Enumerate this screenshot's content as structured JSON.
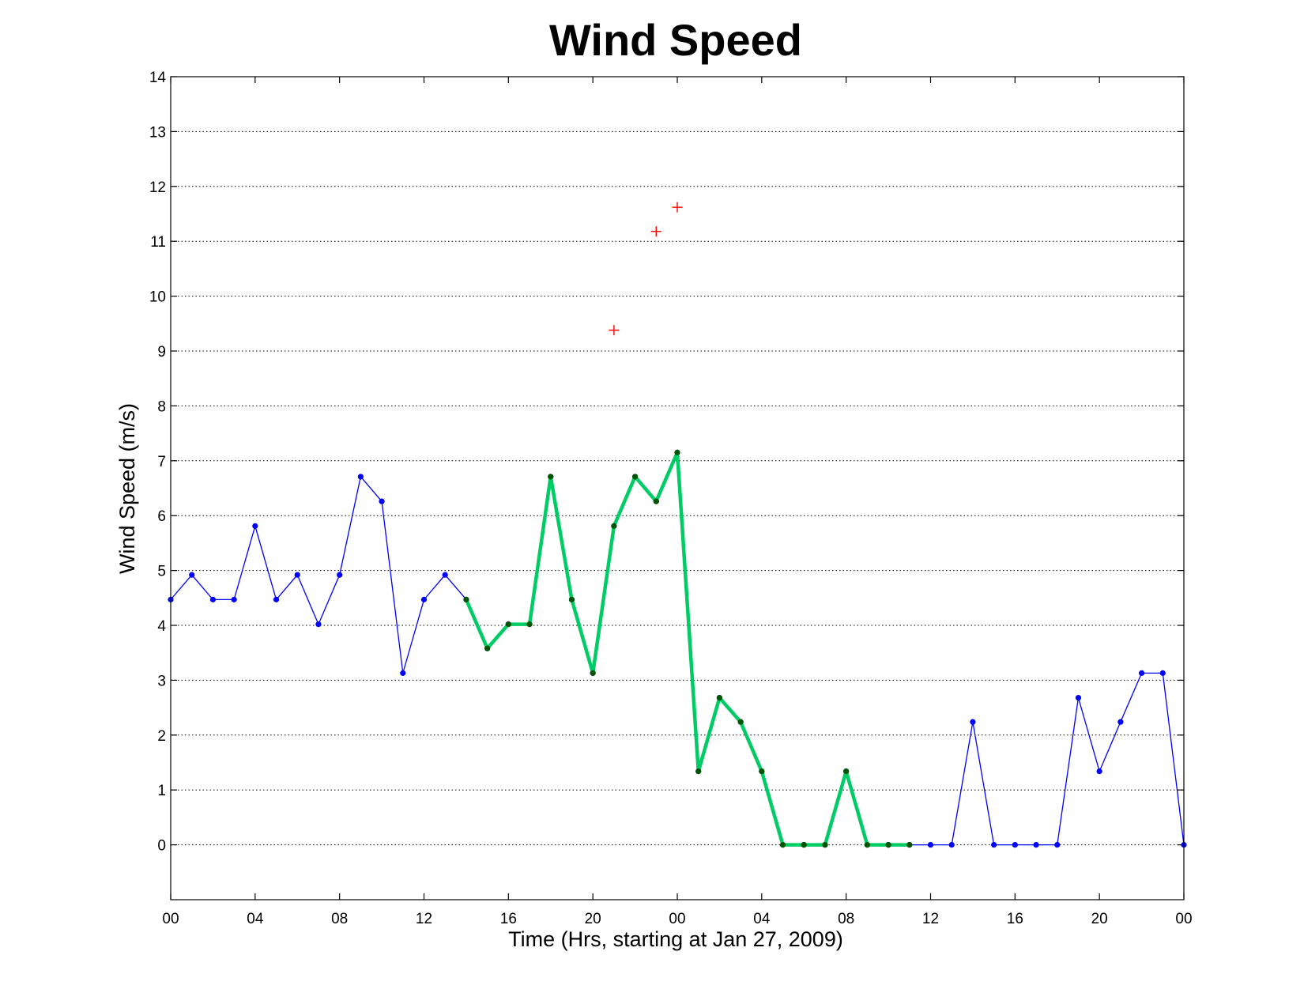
{
  "chart_data": {
    "type": "line",
    "title": "Wind Speed",
    "xlabel": "Time (Hrs, starting at Jan 27, 2009)",
    "ylabel": "Wind Speed (m/s)",
    "xlim": [
      0,
      48
    ],
    "ylim": [
      -1,
      14
    ],
    "grid": "y-major dotted",
    "x_ticks": [
      0,
      4,
      8,
      12,
      16,
      20,
      24,
      28,
      32,
      36,
      40,
      44,
      48
    ],
    "x_tick_labels": [
      "00",
      "04",
      "08",
      "12",
      "16",
      "20",
      "00",
      "04",
      "08",
      "12",
      "16",
      "20",
      "00"
    ],
    "y_ticks": [
      0,
      1,
      2,
      3,
      4,
      5,
      6,
      7,
      8,
      9,
      10,
      11,
      12,
      13,
      14
    ],
    "y_tick_labels": [
      "0",
      "1",
      "2",
      "3",
      "4",
      "5",
      "6",
      "7",
      "8",
      "9",
      "10",
      "11",
      "12",
      "13",
      "14"
    ],
    "series": [
      {
        "style": "thin line with dot markers",
        "color": "#0000ff",
        "x": [
          0,
          1,
          2,
          3,
          4,
          5,
          6,
          7,
          8,
          9,
          10,
          11,
          12,
          13,
          14,
          15,
          16,
          17,
          18,
          19,
          20,
          21,
          22,
          23,
          24,
          25,
          26,
          27,
          28,
          29,
          30,
          31,
          32,
          33,
          34,
          35,
          36,
          37,
          38,
          39,
          40,
          41,
          42,
          43,
          44,
          45,
          46,
          47,
          48
        ],
        "values": [
          4.47,
          4.92,
          4.47,
          4.47,
          5.81,
          4.47,
          4.92,
          4.02,
          4.92,
          6.71,
          6.26,
          3.13,
          4.47,
          4.92,
          4.47,
          3.58,
          4.02,
          4.02,
          6.71,
          4.47,
          3.13,
          5.81,
          6.71,
          6.26,
          7.15,
          1.34,
          2.68,
          2.24,
          1.34,
          0,
          0,
          0,
          1.34,
          0,
          0,
          0,
          0,
          0,
          2.24,
          0,
          0,
          0,
          0,
          2.68,
          1.34,
          2.24,
          3.13,
          3.13,
          0
        ]
      },
      {
        "style": "thick line with dark green dot markers",
        "color": "#00cc66",
        "marker_color": "#005500",
        "x": [
          14,
          15,
          16,
          17,
          18,
          19,
          20,
          21,
          22,
          23,
          24,
          25,
          26,
          27,
          28,
          29,
          30,
          31,
          32,
          33,
          34,
          35
        ],
        "values": [
          4.47,
          3.58,
          4.02,
          4.02,
          6.71,
          4.47,
          3.13,
          5.81,
          6.71,
          6.26,
          7.15,
          1.34,
          2.68,
          2.24,
          1.34,
          0,
          0,
          0,
          1.34,
          0,
          0,
          0
        ]
      },
      {
        "style": "plus markers only",
        "color": "#ff0000",
        "x": [
          21,
          23,
          24
        ],
        "values": [
          9.38,
          11.18,
          11.62
        ]
      }
    ]
  }
}
